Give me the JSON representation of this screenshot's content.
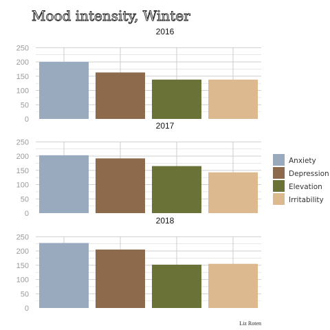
{
  "chart_data": {
    "type": "bar",
    "title": "Mood intensity, Winter",
    "credit": "Liz Roten",
    "ylim": [
      0,
      250
    ],
    "yticks": [
      0,
      50,
      100,
      150,
      200,
      250
    ],
    "grid": true,
    "legend_placement": "right",
    "categories": [
      "Anxiety",
      "Depression",
      "Elevation",
      "Irritability"
    ],
    "colors": {
      "Anxiety": "#99aabf",
      "Depression": "#8c6a4b",
      "Elevation": "#6b7238",
      "Irritability": "#dcb98e"
    },
    "panels": [
      {
        "label": "2016",
        "values": [
          200,
          163,
          138,
          138
        ]
      },
      {
        "label": "2017",
        "values": [
          203,
          192,
          165,
          143
        ]
      },
      {
        "label": "2018",
        "values": [
          228,
          205,
          152,
          155
        ]
      }
    ]
  }
}
